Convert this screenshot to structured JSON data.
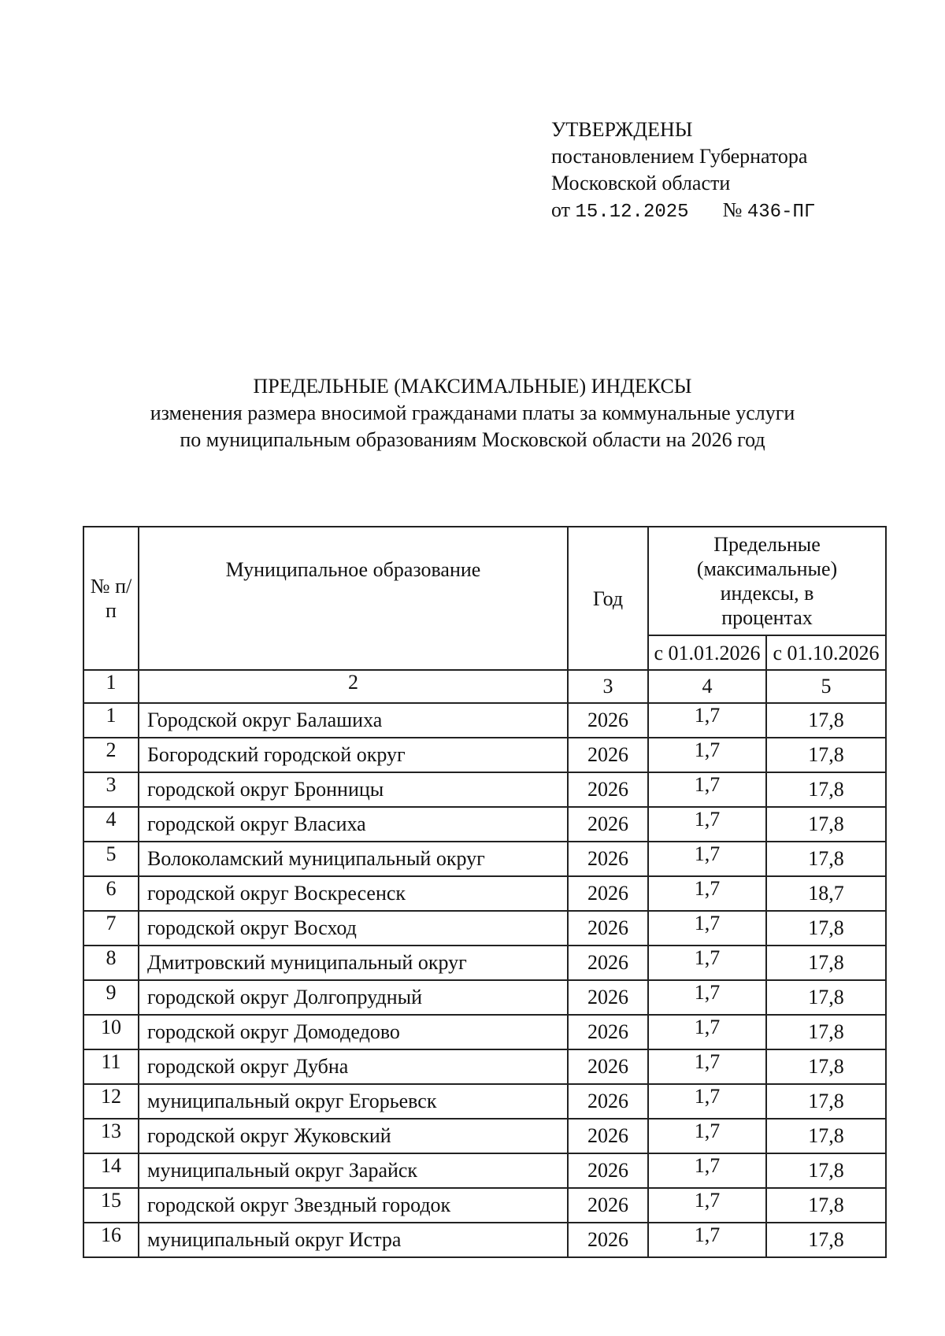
{
  "approval": {
    "line1": "УТВЕРЖДЕНЫ",
    "line2": "постановлением Губернатора",
    "line3": "Московской области",
    "date_prefix": "от",
    "date": "15.12.2025",
    "number_label": "№",
    "number": "436-ПГ"
  },
  "title": {
    "line1": "ПРЕДЕЛЬНЫЕ (МАКСИМАЛЬНЫЕ) ИНДЕКСЫ",
    "line2": "изменения размера вносимой гражданами платы за коммунальные услуги",
    "line3": "по муниципальным образованиям Московской области на 2026 год"
  },
  "table": {
    "headers": {
      "num": "№ п/п",
      "municipality": "Муниципальное образование",
      "year": "Год",
      "indices": "Предельные (максимальные) индексы, в процентах",
      "from_jan": "с 01.01.2026",
      "from_oct": "с 01.10.2026"
    },
    "column_numbers": [
      "1",
      "2",
      "3",
      "4",
      "5"
    ],
    "rows": [
      {
        "n": "1",
        "name": "Городской округ Балашиха",
        "year": "2026",
        "jan": "1,7",
        "oct": "17,8"
      },
      {
        "n": "2",
        "name": "Богородский городской округ",
        "year": "2026",
        "jan": "1,7",
        "oct": "17,8"
      },
      {
        "n": "3",
        "name": "городской округ Бронницы",
        "year": "2026",
        "jan": "1,7",
        "oct": "17,8"
      },
      {
        "n": "4",
        "name": "городской округ Власиха",
        "year": "2026",
        "jan": "1,7",
        "oct": "17,8"
      },
      {
        "n": "5",
        "name": "Волоколамский муниципальный округ",
        "year": "2026",
        "jan": "1,7",
        "oct": "17,8"
      },
      {
        "n": "6",
        "name": "городской округ Воскресенск",
        "year": "2026",
        "jan": "1,7",
        "oct": "18,7"
      },
      {
        "n": "7",
        "name": "городской округ Восход",
        "year": "2026",
        "jan": "1,7",
        "oct": "17,8"
      },
      {
        "n": "8",
        "name": "Дмитровский муниципальный округ",
        "year": "2026",
        "jan": "1,7",
        "oct": "17,8"
      },
      {
        "n": "9",
        "name": "городской округ Долгопрудный",
        "year": "2026",
        "jan": "1,7",
        "oct": "17,8"
      },
      {
        "n": "10",
        "name": "городской округ Домодедово",
        "year": "2026",
        "jan": "1,7",
        "oct": "17,8"
      },
      {
        "n": "11",
        "name": "городской округ Дубна",
        "year": "2026",
        "jan": "1,7",
        "oct": "17,8"
      },
      {
        "n": "12",
        "name": "муниципальный округ Егорьевск",
        "year": "2026",
        "jan": "1,7",
        "oct": "17,8"
      },
      {
        "n": "13",
        "name": "городской округ Жуковский",
        "year": "2026",
        "jan": "1,7",
        "oct": "17,8"
      },
      {
        "n": "14",
        "name": "муниципальный округ Зарайск",
        "year": "2026",
        "jan": "1,7",
        "oct": "17,8"
      },
      {
        "n": "15",
        "name": "городской округ Звездный городок",
        "year": "2026",
        "jan": "1,7",
        "oct": "17,8"
      },
      {
        "n": "16",
        "name": "муниципальный округ Истра",
        "year": "2026",
        "jan": "1,7",
        "oct": "17,8"
      }
    ]
  }
}
